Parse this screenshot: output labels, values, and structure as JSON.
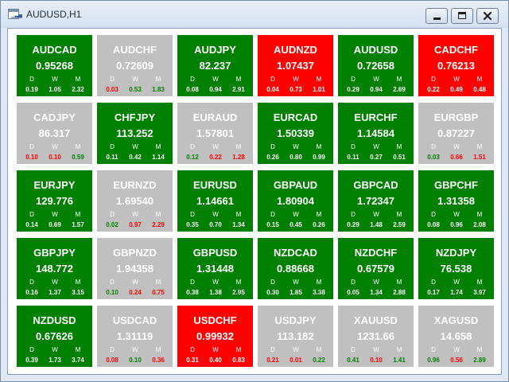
{
  "window": {
    "title": "AUDUSD,H1",
    "app_icon": "chart-window-icon",
    "controls": {
      "minimize": "minimize-icon",
      "maximize": "maximize-icon",
      "close": "close-icon"
    }
  },
  "colors": {
    "green": "#008000",
    "gray": "#c0c0c0",
    "red": "#ff0000",
    "value_red": "#ff0000",
    "value_green": "#008000",
    "value_white": "#ffffff"
  },
  "period_labels": {
    "d": "D",
    "w": "W",
    "m": "M"
  },
  "tiles": [
    {
      "symbol": "AUDCAD",
      "price": "0.95268",
      "bg": "green",
      "d": {
        "v": "0.19",
        "c": "white"
      },
      "w": {
        "v": "1.05",
        "c": "white"
      },
      "m": {
        "v": "2.32",
        "c": "white"
      }
    },
    {
      "symbol": "AUDCHF",
      "price": "0.72609",
      "bg": "gray",
      "d": {
        "v": "0.03",
        "c": "red"
      },
      "w": {
        "v": "0.53",
        "c": "green"
      },
      "m": {
        "v": "1.83",
        "c": "green"
      }
    },
    {
      "symbol": "AUDJPY",
      "price": "82.237",
      "bg": "green",
      "d": {
        "v": "0.08",
        "c": "white"
      },
      "w": {
        "v": "0.94",
        "c": "white"
      },
      "m": {
        "v": "2.91",
        "c": "white"
      }
    },
    {
      "symbol": "AUDNZD",
      "price": "1.07437",
      "bg": "red",
      "d": {
        "v": "0.04",
        "c": "white"
      },
      "w": {
        "v": "0.73",
        "c": "white"
      },
      "m": {
        "v": "1.01",
        "c": "white"
      }
    },
    {
      "symbol": "AUDUSD",
      "price": "0.72658",
      "bg": "green",
      "d": {
        "v": "0.29",
        "c": "white"
      },
      "w": {
        "v": "0.94",
        "c": "white"
      },
      "m": {
        "v": "2.69",
        "c": "white"
      }
    },
    {
      "symbol": "CADCHF",
      "price": "0.76213",
      "bg": "red",
      "d": {
        "v": "0.22",
        "c": "white"
      },
      "w": {
        "v": "0.49",
        "c": "white"
      },
      "m": {
        "v": "0.48",
        "c": "white"
      }
    },
    {
      "symbol": "CADJPY",
      "price": "86.317",
      "bg": "gray",
      "d": {
        "v": "0.10",
        "c": "red"
      },
      "w": {
        "v": "0.10",
        "c": "red"
      },
      "m": {
        "v": "0.59",
        "c": "green"
      }
    },
    {
      "symbol": "CHFJPY",
      "price": "113.252",
      "bg": "green",
      "d": {
        "v": "0.11",
        "c": "white"
      },
      "w": {
        "v": "0.42",
        "c": "white"
      },
      "m": {
        "v": "1.14",
        "c": "white"
      }
    },
    {
      "symbol": "EURAUD",
      "price": "1.57801",
      "bg": "gray",
      "d": {
        "v": "0.12",
        "c": "green"
      },
      "w": {
        "v": "0.22",
        "c": "red"
      },
      "m": {
        "v": "1.28",
        "c": "red"
      }
    },
    {
      "symbol": "EURCAD",
      "price": "1.50339",
      "bg": "green",
      "d": {
        "v": "0.26",
        "c": "white"
      },
      "w": {
        "v": "0.80",
        "c": "white"
      },
      "m": {
        "v": "0.99",
        "c": "white"
      }
    },
    {
      "symbol": "EURCHF",
      "price": "1.14584",
      "bg": "green",
      "d": {
        "v": "0.11",
        "c": "white"
      },
      "w": {
        "v": "0.27",
        "c": "white"
      },
      "m": {
        "v": "0.51",
        "c": "white"
      }
    },
    {
      "symbol": "EURGBP",
      "price": "0.87227",
      "bg": "gray",
      "d": {
        "v": "0.03",
        "c": "green"
      },
      "w": {
        "v": "0.66",
        "c": "red"
      },
      "m": {
        "v": "1.51",
        "c": "red"
      }
    },
    {
      "symbol": "EURJPY",
      "price": "129.776",
      "bg": "green",
      "d": {
        "v": "0.14",
        "c": "white"
      },
      "w": {
        "v": "0.69",
        "c": "white"
      },
      "m": {
        "v": "1.57",
        "c": "white"
      }
    },
    {
      "symbol": "EURNZD",
      "price": "1.69540",
      "bg": "gray",
      "d": {
        "v": "0.02",
        "c": "green"
      },
      "w": {
        "v": "0.97",
        "c": "red"
      },
      "m": {
        "v": "2.29",
        "c": "red"
      }
    },
    {
      "symbol": "EURUSD",
      "price": "1.14661",
      "bg": "green",
      "d": {
        "v": "0.35",
        "c": "white"
      },
      "w": {
        "v": "0.70",
        "c": "white"
      },
      "m": {
        "v": "1.34",
        "c": "white"
      }
    },
    {
      "symbol": "GBPAUD",
      "price": "1.80904",
      "bg": "green",
      "d": {
        "v": "0.15",
        "c": "white"
      },
      "w": {
        "v": "0.45",
        "c": "white"
      },
      "m": {
        "v": "0.26",
        "c": "white"
      }
    },
    {
      "symbol": "GBPCAD",
      "price": "1.72347",
      "bg": "green",
      "d": {
        "v": "0.29",
        "c": "white"
      },
      "w": {
        "v": "1.48",
        "c": "white"
      },
      "m": {
        "v": "2.59",
        "c": "white"
      }
    },
    {
      "symbol": "GBPCHF",
      "price": "1.31358",
      "bg": "green",
      "d": {
        "v": "0.08",
        "c": "white"
      },
      "w": {
        "v": "0.96",
        "c": "white"
      },
      "m": {
        "v": "2.08",
        "c": "white"
      }
    },
    {
      "symbol": "GBPJPY",
      "price": "148.772",
      "bg": "green",
      "d": {
        "v": "0.16",
        "c": "white"
      },
      "w": {
        "v": "1.37",
        "c": "white"
      },
      "m": {
        "v": "3.15",
        "c": "white"
      }
    },
    {
      "symbol": "GBPNZD",
      "price": "1.94358",
      "bg": "gray",
      "d": {
        "v": "0.10",
        "c": "green"
      },
      "w": {
        "v": "0.24",
        "c": "red"
      },
      "m": {
        "v": "0.75",
        "c": "red"
      }
    },
    {
      "symbol": "GBPUSD",
      "price": "1.31448",
      "bg": "green",
      "d": {
        "v": "0.38",
        "c": "white"
      },
      "w": {
        "v": "1.38",
        "c": "white"
      },
      "m": {
        "v": "2.95",
        "c": "white"
      }
    },
    {
      "symbol": "NZDCAD",
      "price": "0.88668",
      "bg": "green",
      "d": {
        "v": "0.30",
        "c": "white"
      },
      "w": {
        "v": "1.85",
        "c": "white"
      },
      "m": {
        "v": "3.38",
        "c": "white"
      }
    },
    {
      "symbol": "NZDCHF",
      "price": "0.67579",
      "bg": "green",
      "d": {
        "v": "0.05",
        "c": "white"
      },
      "w": {
        "v": "1.34",
        "c": "white"
      },
      "m": {
        "v": "2.88",
        "c": "white"
      }
    },
    {
      "symbol": "NZDJPY",
      "price": "76.538",
      "bg": "green",
      "d": {
        "v": "0.17",
        "c": "white"
      },
      "w": {
        "v": "1.74",
        "c": "white"
      },
      "m": {
        "v": "3.97",
        "c": "white"
      }
    },
    {
      "symbol": "NZDUSD",
      "price": "0.67626",
      "bg": "green",
      "d": {
        "v": "0.39",
        "c": "white"
      },
      "w": {
        "v": "1.73",
        "c": "white"
      },
      "m": {
        "v": "3.74",
        "c": "white"
      }
    },
    {
      "symbol": "USDCAD",
      "price": "1.31119",
      "bg": "gray",
      "d": {
        "v": "0.08",
        "c": "red"
      },
      "w": {
        "v": "0.10",
        "c": "green"
      },
      "m": {
        "v": "0.36",
        "c": "red"
      }
    },
    {
      "symbol": "USDCHF",
      "price": "0.99932",
      "bg": "red",
      "d": {
        "v": "0.31",
        "c": "white"
      },
      "w": {
        "v": "0.40",
        "c": "white"
      },
      "m": {
        "v": "0.83",
        "c": "white"
      }
    },
    {
      "symbol": "USDJPY",
      "price": "113.182",
      "bg": "gray",
      "d": {
        "v": "0.21",
        "c": "red"
      },
      "w": {
        "v": "0.01",
        "c": "red"
      },
      "m": {
        "v": "0.22",
        "c": "green"
      }
    },
    {
      "symbol": "XAUUSD",
      "price": "1231.66",
      "bg": "gray",
      "d": {
        "v": "0.41",
        "c": "green"
      },
      "w": {
        "v": "0.10",
        "c": "red"
      },
      "m": {
        "v": "1.41",
        "c": "green"
      }
    },
    {
      "symbol": "XAGUSD",
      "price": "14.658",
      "bg": "gray",
      "d": {
        "v": "0.96",
        "c": "green"
      },
      "w": {
        "v": "0.56",
        "c": "red"
      },
      "m": {
        "v": "2.89",
        "c": "green"
      }
    }
  ]
}
